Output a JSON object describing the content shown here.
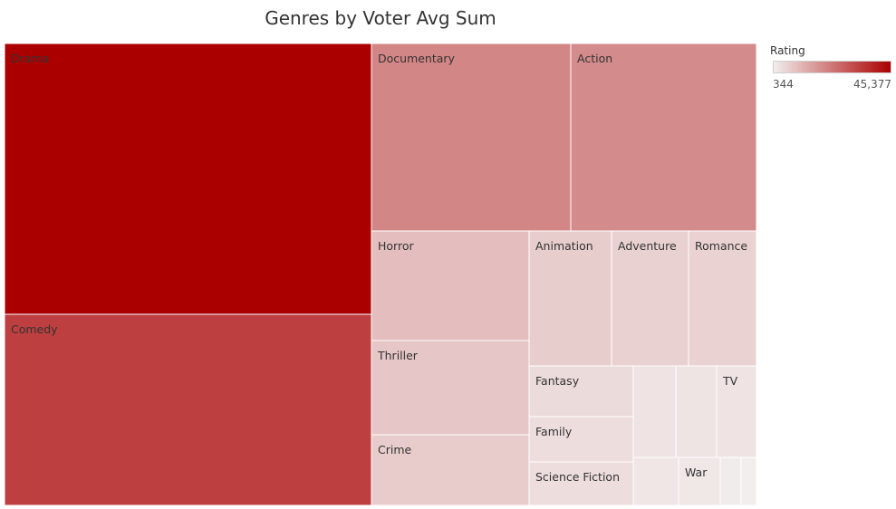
{
  "chart_data": {
    "type": "treemap",
    "title": "Genres by Voter Avg Sum",
    "legend": {
      "title": "Rating",
      "min": 344,
      "max": 45377,
      "min_label": "344",
      "max_label": "45,377",
      "placement": "top-right"
    },
    "colors": {
      "low": "#f2eeee",
      "high": "#aa0000",
      "border": "#ffffff",
      "label_light": "#ffffff",
      "label_dark": "#333333"
    },
    "tiles": [
      {
        "label": "Drama",
        "value": 45377
      },
      {
        "label": "Comedy",
        "value": 33500
      },
      {
        "label": "Documentary",
        "value": 20000
      },
      {
        "label": "Action",
        "value": 19000
      },
      {
        "label": "Horror",
        "value": 9400
      },
      {
        "label": "Thriller",
        "value": 8000
      },
      {
        "label": "Crime",
        "value": 6700
      },
      {
        "label": "Animation",
        "value": 6500
      },
      {
        "label": "Adventure",
        "value": 5800
      },
      {
        "label": "Romance",
        "value": 5600
      },
      {
        "label": "Fantasy",
        "value": 3900
      },
      {
        "label": "Family",
        "value": 3600
      },
      {
        "label": "Science Fiction",
        "value": 3600
      },
      {
        "label": "",
        "value": 2500
      },
      {
        "label": "",
        "value": 2300
      },
      {
        "label": "TV",
        "value": 2400
      },
      {
        "label": "",
        "value": 1900
      },
      {
        "label": "War",
        "value": 1700
      },
      {
        "label": "",
        "value": 800
      },
      {
        "label": "",
        "value": 344
      }
    ]
  }
}
